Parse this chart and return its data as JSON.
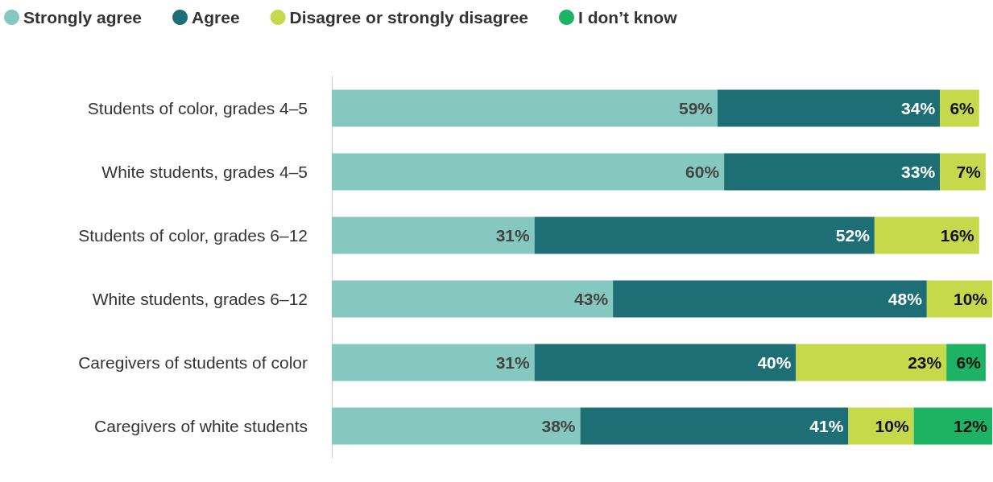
{
  "chart_data": {
    "type": "bar",
    "orientation": "horizontal",
    "stacked": true,
    "legend": "top left",
    "xlim": [
      0,
      101
    ],
    "tick_labels": "y",
    "categories": [
      "Students of color, grades 4–5",
      "White students, grades 4–5",
      "Students of color, grades 6–12",
      "White students, grades 6–12",
      "Caregivers of students of color",
      "Caregivers of white students"
    ],
    "series": [
      {
        "name": "Strongly agree",
        "color": "#85c8bf",
        "values": [
          59,
          60,
          31,
          43,
          31,
          38
        ],
        "value_labels": [
          "59%",
          "60%",
          "31%",
          "43%",
          "31%",
          "38%"
        ]
      },
      {
        "name": "Agree",
        "color": "#1d6f75",
        "values": [
          34,
          33,
          52,
          48,
          40,
          41
        ],
        "value_labels": [
          "34%",
          "33%",
          "52%",
          "48%",
          "40%",
          "41%"
        ]
      },
      {
        "name": "Disagree or strongly disagree",
        "color": "#c5d94a",
        "values": [
          6,
          7,
          16,
          10,
          23,
          10
        ],
        "value_labels": [
          "6%",
          "7%",
          "16%",
          "10%",
          "23%",
          "10%"
        ]
      },
      {
        "name": "I don’t know",
        "color": "#1db364",
        "values": [
          null,
          null,
          null,
          null,
          6,
          12
        ],
        "value_labels": [
          null,
          null,
          null,
          null,
          "6%",
          "12%"
        ]
      }
    ]
  }
}
